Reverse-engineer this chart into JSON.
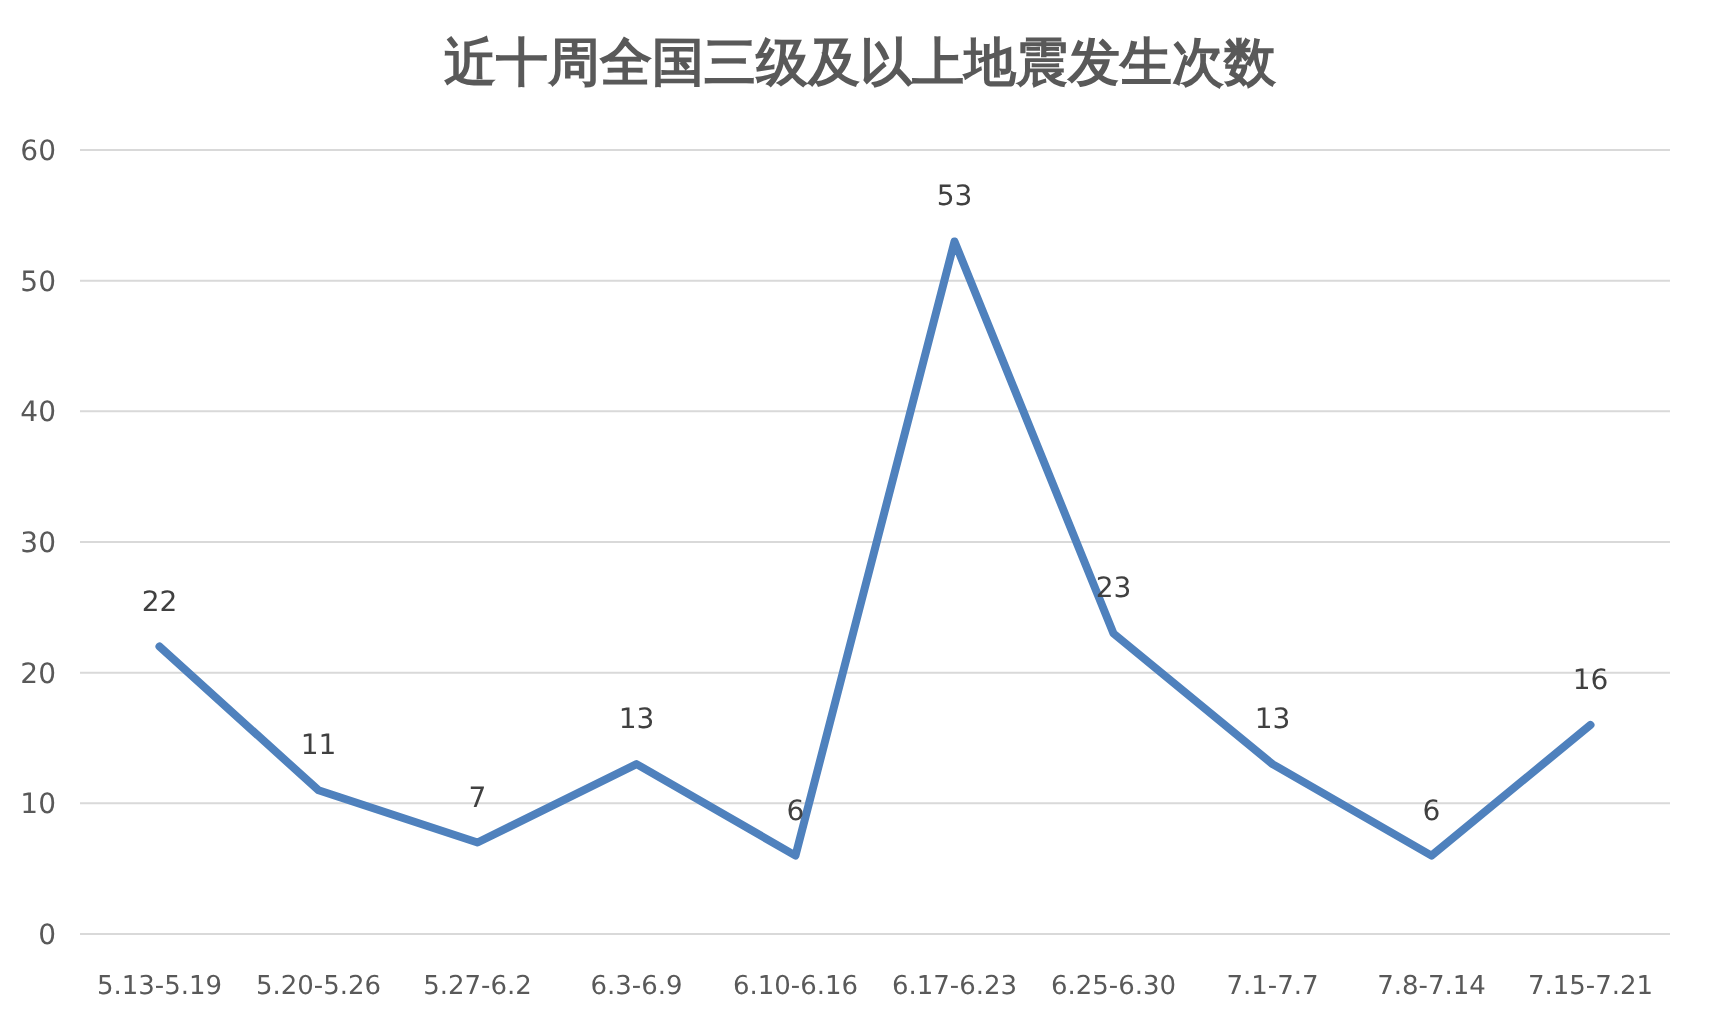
{
  "chart_data": {
    "type": "line",
    "title": "近十周全国三级及以上地震发生次数",
    "categories": [
      "5.13-5.19",
      "5.20-5.26",
      "5.27-6.2",
      "6.3-6.9",
      "6.10-6.16",
      "6.17-6.23",
      "6.25-6.30",
      "7.1-7.7",
      "7.8-7.14",
      "7.15-7.21"
    ],
    "values": [
      22,
      11,
      7,
      13,
      6,
      53,
      23,
      13,
      6,
      16
    ],
    "color": "#4f81bd",
    "ylim": [
      0,
      60
    ],
    "yticks": [
      0,
      10,
      20,
      30,
      40,
      50,
      60
    ],
    "grid": "y",
    "data_labels": true,
    "marker": "none",
    "line_style": "solid"
  }
}
